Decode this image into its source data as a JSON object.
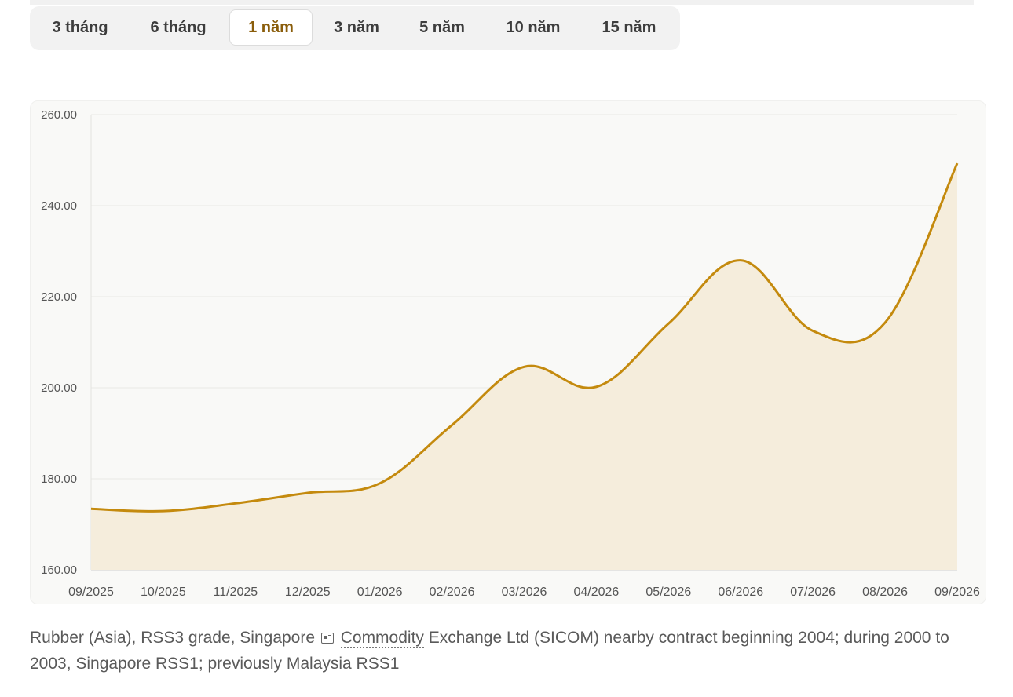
{
  "period_tabs": [
    {
      "label": "3 tháng",
      "active": false
    },
    {
      "label": "6 tháng",
      "active": false
    },
    {
      "label": "1 năm",
      "active": true
    },
    {
      "label": "3 năm",
      "active": false
    },
    {
      "label": "5 năm",
      "active": false
    },
    {
      "label": "10 năm",
      "active": false
    },
    {
      "label": "15 năm",
      "active": false
    }
  ],
  "colors": {
    "line": "#c48a0e",
    "fill": "#f5eddc",
    "panel": "#f9f9f7",
    "active_tab_text": "#8a5d0b"
  },
  "chart_data": {
    "type": "area",
    "title": "",
    "xlabel": "",
    "ylabel": "",
    "ylim": [
      160,
      260
    ],
    "y_ticks": [
      "260.00",
      "240.00",
      "220.00",
      "200.00",
      "180.00",
      "160.00"
    ],
    "y_tick_values": [
      260,
      240,
      220,
      200,
      180,
      160
    ],
    "x_ticks": [
      "09/2025",
      "10/2025",
      "11/2025",
      "12/2025",
      "01/2026",
      "02/2026",
      "03/2026",
      "04/2026",
      "05/2026",
      "06/2026",
      "07/2026",
      "08/2026",
      "09/2026"
    ],
    "grid": true,
    "legend": "none",
    "series": [
      {
        "values": [
          173.4,
          172.9,
          174.6,
          176.9,
          179.0,
          191.8,
          204.6,
          200.2,
          214.1,
          228.0,
          212.5,
          214.3,
          249.3
        ]
      }
    ]
  },
  "caption": {
    "before_icon": "Rubber (Asia), RSS3 grade, Singapore ",
    "icon": "news-icon",
    "abbr": "Commodity",
    "after": " Exchange Ltd (SICOM) nearby contract beginning 2004; during 2000 to 2003, Singapore RSS1; previously Malaysia RSS1"
  }
}
